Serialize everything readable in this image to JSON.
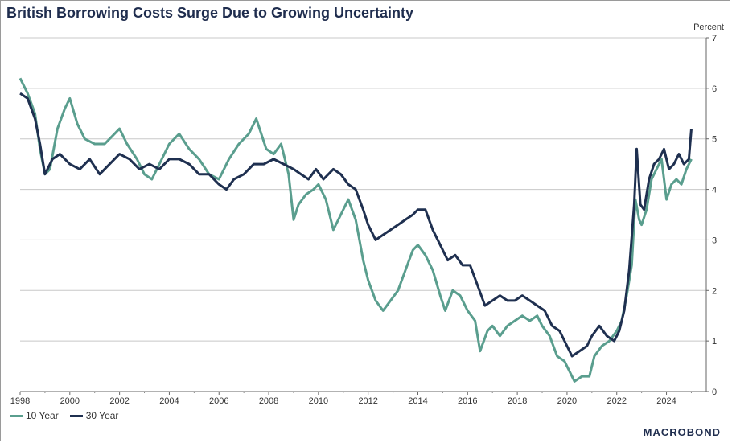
{
  "header": {
    "title": "British Borrowing Costs Surge Due to Growing Uncertainty"
  },
  "brand": "MACROBOND",
  "colors": {
    "ten_year": "#5a9e8e",
    "thirty_year": "#1f3050",
    "grid": "#c8c8c8"
  },
  "chart_data": {
    "type": "line",
    "title": "British Borrowing Costs Surge Due to Growing Uncertainty",
    "ylabel": "Percent",
    "xlabel": "",
    "xlim": [
      1998,
      2025.6
    ],
    "ylim": [
      0,
      7
    ],
    "yticks": [
      0,
      1,
      2,
      3,
      4,
      5,
      6,
      7
    ],
    "xticks": [
      "1998",
      "2000",
      "2002",
      "2004",
      "2006",
      "2008",
      "2010",
      "2012",
      "2014",
      "2016",
      "2018",
      "2020",
      "2022",
      "2024"
    ],
    "grid": true,
    "legend_position": "bottom-left",
    "series": [
      {
        "name": "10 Year",
        "x": [
          1998.0,
          1998.3,
          1998.6,
          1998.8,
          1999.0,
          1999.2,
          1999.5,
          1999.8,
          2000.0,
          2000.3,
          2000.6,
          2001.0,
          2001.4,
          2001.8,
          2002.0,
          2002.3,
          2002.7,
          2003.0,
          2003.3,
          2003.6,
          2004.0,
          2004.4,
          2004.8,
          2005.2,
          2005.6,
          2006.0,
          2006.4,
          2006.8,
          2007.2,
          2007.5,
          2007.9,
          2008.2,
          2008.5,
          2008.8,
          2009.0,
          2009.2,
          2009.5,
          2009.8,
          2010.0,
          2010.3,
          2010.6,
          2010.9,
          2011.2,
          2011.5,
          2011.8,
          2012.0,
          2012.3,
          2012.6,
          2012.9,
          2013.2,
          2013.5,
          2013.8,
          2014.0,
          2014.3,
          2014.6,
          2014.9,
          2015.1,
          2015.4,
          2015.7,
          2016.0,
          2016.3,
          2016.5,
          2016.8,
          2017.0,
          2017.3,
          2017.6,
          2017.9,
          2018.2,
          2018.5,
          2018.8,
          2019.0,
          2019.3,
          2019.6,
          2019.9,
          2020.1,
          2020.3,
          2020.6,
          2020.9,
          2021.1,
          2021.4,
          2021.7,
          2022.0,
          2022.2,
          2022.4,
          2022.6,
          2022.75,
          2022.9,
          2023.0,
          2023.2,
          2023.4,
          2023.6,
          2023.8,
          2024.0,
          2024.2,
          2024.4,
          2024.6,
          2024.8,
          2025.0
        ],
        "values": [
          6.2,
          5.9,
          5.5,
          4.8,
          4.3,
          4.4,
          5.2,
          5.6,
          5.8,
          5.3,
          5.0,
          4.9,
          4.9,
          5.1,
          5.2,
          4.9,
          4.6,
          4.3,
          4.2,
          4.5,
          4.9,
          5.1,
          4.8,
          4.6,
          4.3,
          4.2,
          4.6,
          4.9,
          5.1,
          5.4,
          4.8,
          4.7,
          4.9,
          4.3,
          3.4,
          3.7,
          3.9,
          4.0,
          4.1,
          3.8,
          3.2,
          3.5,
          3.8,
          3.4,
          2.6,
          2.2,
          1.8,
          1.6,
          1.8,
          2.0,
          2.4,
          2.8,
          2.9,
          2.7,
          2.4,
          1.9,
          1.6,
          2.0,
          1.9,
          1.6,
          1.4,
          0.8,
          1.2,
          1.3,
          1.1,
          1.3,
          1.4,
          1.5,
          1.4,
          1.5,
          1.3,
          1.1,
          0.7,
          0.6,
          0.4,
          0.2,
          0.3,
          0.3,
          0.7,
          0.9,
          1.0,
          1.2,
          1.4,
          1.9,
          2.5,
          3.8,
          3.4,
          3.3,
          3.6,
          4.2,
          4.4,
          4.6,
          3.8,
          4.1,
          4.2,
          4.1,
          4.4,
          4.6
        ]
      },
      {
        "name": "30 Year",
        "x": [
          1998.0,
          1998.3,
          1998.6,
          1998.8,
          1999.0,
          1999.3,
          1999.6,
          2000.0,
          2000.4,
          2000.8,
          2001.2,
          2001.6,
          2002.0,
          2002.4,
          2002.8,
          2003.2,
          2003.6,
          2004.0,
          2004.4,
          2004.8,
          2005.2,
          2005.6,
          2006.0,
          2006.3,
          2006.6,
          2007.0,
          2007.4,
          2007.8,
          2008.2,
          2008.6,
          2009.0,
          2009.3,
          2009.6,
          2009.9,
          2010.2,
          2010.6,
          2010.9,
          2011.2,
          2011.5,
          2011.8,
          2012.0,
          2012.3,
          2012.6,
          2012.9,
          2013.2,
          2013.5,
          2013.8,
          2014.0,
          2014.3,
          2014.6,
          2014.9,
          2015.2,
          2015.5,
          2015.8,
          2016.1,
          2016.4,
          2016.7,
          2017.0,
          2017.3,
          2017.6,
          2017.9,
          2018.2,
          2018.5,
          2018.8,
          2019.1,
          2019.4,
          2019.7,
          2020.0,
          2020.2,
          2020.5,
          2020.8,
          2021.0,
          2021.3,
          2021.6,
          2021.9,
          2022.1,
          2022.3,
          2022.5,
          2022.7,
          2022.8,
          2022.95,
          2023.1,
          2023.3,
          2023.5,
          2023.7,
          2023.9,
          2024.1,
          2024.3,
          2024.5,
          2024.7,
          2024.9,
          2025.0
        ],
        "values": [
          5.9,
          5.8,
          5.4,
          4.9,
          4.3,
          4.6,
          4.7,
          4.5,
          4.4,
          4.6,
          4.3,
          4.5,
          4.7,
          4.6,
          4.4,
          4.5,
          4.4,
          4.6,
          4.6,
          4.5,
          4.3,
          4.3,
          4.1,
          4.0,
          4.2,
          4.3,
          4.5,
          4.5,
          4.6,
          4.5,
          4.4,
          4.3,
          4.2,
          4.4,
          4.2,
          4.4,
          4.3,
          4.1,
          4.0,
          3.6,
          3.3,
          3.0,
          3.1,
          3.2,
          3.3,
          3.4,
          3.5,
          3.6,
          3.6,
          3.2,
          2.9,
          2.6,
          2.7,
          2.5,
          2.5,
          2.1,
          1.7,
          1.8,
          1.9,
          1.8,
          1.8,
          1.9,
          1.8,
          1.7,
          1.6,
          1.3,
          1.2,
          0.9,
          0.7,
          0.8,
          0.9,
          1.1,
          1.3,
          1.1,
          1.0,
          1.2,
          1.6,
          2.4,
          3.7,
          4.8,
          3.7,
          3.6,
          4.2,
          4.5,
          4.6,
          4.8,
          4.4,
          4.5,
          4.7,
          4.5,
          4.6,
          5.2
        ]
      }
    ]
  },
  "legend": {
    "item1": "10 Year",
    "item2": "30 Year"
  }
}
